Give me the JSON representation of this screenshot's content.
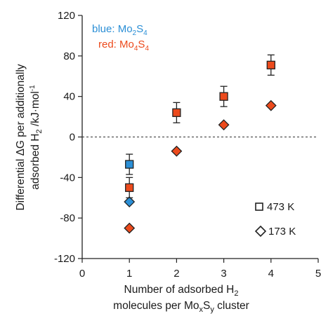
{
  "chart_data": {
    "type": "scatter",
    "xlabel_lines": [
      "Number of adsorbed H",
      "molecules per Mo",
      "S",
      " cluster"
    ],
    "xlabel": {
      "line1": "Number of adsorbed H",
      "line1_sub": "2",
      "line2_a": "molecules per Mo",
      "line2_sub1": "x",
      "line2_b": "S",
      "line2_sub2": "y",
      "line2_c": " cluster"
    },
    "ylabel": {
      "line1": "Differential ΔG per additionally",
      "line2_a": "adsorbed H",
      "line2_sub": "2",
      "line2_b": " /kJ·mol",
      "line2_sup": "-1"
    },
    "xlim": [
      0,
      5
    ],
    "ylim": [
      -120,
      120
    ],
    "xticks": [
      "0",
      "1",
      "2",
      "3",
      "4",
      "5"
    ],
    "xtick_values": [
      0,
      1,
      2,
      3,
      4,
      5
    ],
    "yticks": [
      "-120",
      "-80",
      "-40",
      "0",
      "40",
      "80",
      "120"
    ],
    "ytick_values": [
      -120,
      -80,
      -40,
      0,
      40,
      80,
      120
    ],
    "zero_line": "dashed",
    "grid": false,
    "annotations": {
      "blue_text": "blue: Mo",
      "blue_sub1": "2",
      "blue_mid": "S",
      "blue_sub2": "4",
      "red_text": "red: Mo",
      "red_sub1": "4",
      "red_mid": "S",
      "red_sub2": "4"
    },
    "marker_legend": [
      {
        "marker": "square",
        "label": "473 K"
      },
      {
        "marker": "diamond",
        "label": "173 K"
      }
    ],
    "colors": {
      "blue": "#2b8fd6",
      "red": "#ec4a1c",
      "axis": "#222222"
    },
    "series": [
      {
        "color": "blue",
        "marker": "square",
        "points": [
          {
            "x": 1,
            "y": -27,
            "err": 10
          }
        ]
      },
      {
        "color": "blue",
        "marker": "diamond",
        "points": [
          {
            "x": 1,
            "y": -64
          }
        ]
      },
      {
        "color": "red",
        "marker": "square",
        "points": [
          {
            "x": 1,
            "y": -50,
            "err": 10
          },
          {
            "x": 2,
            "y": 24,
            "err": 10
          },
          {
            "x": 3,
            "y": 40,
            "err": 10
          },
          {
            "x": 4,
            "y": 71,
            "err": 10
          }
        ]
      },
      {
        "color": "red",
        "marker": "diamond",
        "points": [
          {
            "x": 1,
            "y": -90
          },
          {
            "x": 2,
            "y": -14
          },
          {
            "x": 3,
            "y": 12
          },
          {
            "x": 4,
            "y": 31
          }
        ]
      }
    ]
  }
}
